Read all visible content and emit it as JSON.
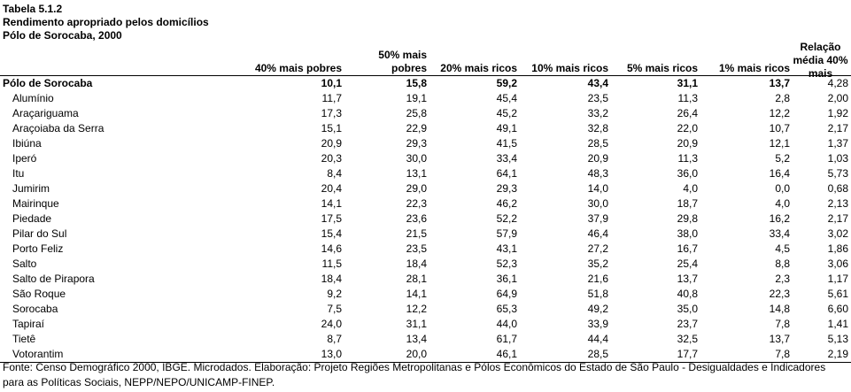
{
  "title": {
    "line1": "Tabela 5.1.2",
    "line2": "Rendimento apropriado pelos domicílios",
    "line3": "Pólo de Sorocaba, 2000"
  },
  "columns": {
    "c1": "40% mais pobres",
    "c2": "50% mais pobres",
    "c3": "20% mais ricos",
    "c4": "10% mais ricos",
    "c5": "5% mais ricos",
    "c6": "1% mais ricos",
    "c7": "Relação média 40% mais"
  },
  "rows": [
    {
      "name": "Pólo de Sorocaba",
      "v": [
        "10,1",
        "15,8",
        "59,2",
        "43,4",
        "31,1",
        "13,7",
        "4,28"
      ]
    },
    {
      "name": "Alumínio",
      "v": [
        "11,7",
        "19,1",
        "45,4",
        "23,5",
        "11,3",
        "2,8",
        "2,00"
      ]
    },
    {
      "name": "Araçariguama",
      "v": [
        "17,3",
        "25,8",
        "45,2",
        "33,2",
        "26,4",
        "12,2",
        "1,92"
      ]
    },
    {
      "name": "Araçoiaba da Serra",
      "v": [
        "15,1",
        "22,9",
        "49,1",
        "32,8",
        "22,0",
        "10,7",
        "2,17"
      ]
    },
    {
      "name": "Ibiúna",
      "v": [
        "20,9",
        "29,3",
        "41,5",
        "28,5",
        "20,9",
        "12,1",
        "1,37"
      ]
    },
    {
      "name": "Iperó",
      "v": [
        "20,3",
        "30,0",
        "33,4",
        "20,9",
        "11,3",
        "5,2",
        "1,03"
      ]
    },
    {
      "name": "Itu",
      "v": [
        "8,4",
        "13,1",
        "64,1",
        "48,3",
        "36,0",
        "16,4",
        "5,73"
      ]
    },
    {
      "name": "Jumirim",
      "v": [
        "20,4",
        "29,0",
        "29,3",
        "14,0",
        "4,0",
        "0,0",
        "0,68"
      ]
    },
    {
      "name": "Mairinque",
      "v": [
        "14,1",
        "22,3",
        "46,2",
        "30,0",
        "18,7",
        "4,0",
        "2,13"
      ]
    },
    {
      "name": "Piedade",
      "v": [
        "17,5",
        "23,6",
        "52,2",
        "37,9",
        "29,8",
        "16,2",
        "2,17"
      ]
    },
    {
      "name": "Pilar do Sul",
      "v": [
        "15,4",
        "21,5",
        "57,9",
        "46,4",
        "38,0",
        "33,4",
        "3,02"
      ]
    },
    {
      "name": "Porto Feliz",
      "v": [
        "14,6",
        "23,5",
        "43,1",
        "27,2",
        "16,7",
        "4,5",
        "1,86"
      ]
    },
    {
      "name": "Salto",
      "v": [
        "11,5",
        "18,4",
        "52,3",
        "35,2",
        "25,4",
        "8,8",
        "3,06"
      ]
    },
    {
      "name": "Salto de Pirapora",
      "v": [
        "18,4",
        "28,1",
        "36,1",
        "21,6",
        "13,7",
        "2,3",
        "1,17"
      ]
    },
    {
      "name": "São Roque",
      "v": [
        "9,2",
        "14,1",
        "64,9",
        "51,8",
        "40,8",
        "22,3",
        "5,61"
      ]
    },
    {
      "name": "Sorocaba",
      "v": [
        "7,5",
        "12,2",
        "65,3",
        "49,2",
        "35,0",
        "14,8",
        "6,60"
      ]
    },
    {
      "name": "Tapiraí",
      "v": [
        "24,0",
        "31,1",
        "44,0",
        "33,9",
        "23,7",
        "7,8",
        "1,41"
      ]
    },
    {
      "name": "Tietê",
      "v": [
        "8,7",
        "13,4",
        "61,7",
        "44,4",
        "32,5",
        "13,7",
        "5,13"
      ]
    },
    {
      "name": "Votorantim",
      "v": [
        "13,0",
        "20,0",
        "46,1",
        "28,5",
        "17,7",
        "7,8",
        "2,19"
      ]
    }
  ],
  "source": "Fonte: Censo Demográfico 2000, IBGE. Microdados. Elaboração: Projeto Regiões Metropolitanas e Pólos Econômicos do Estado de São Paulo - Desigualdades e Indicadores para as Políticas Sociais, NEPP/NEPO/UNICAMP-FINEP."
}
